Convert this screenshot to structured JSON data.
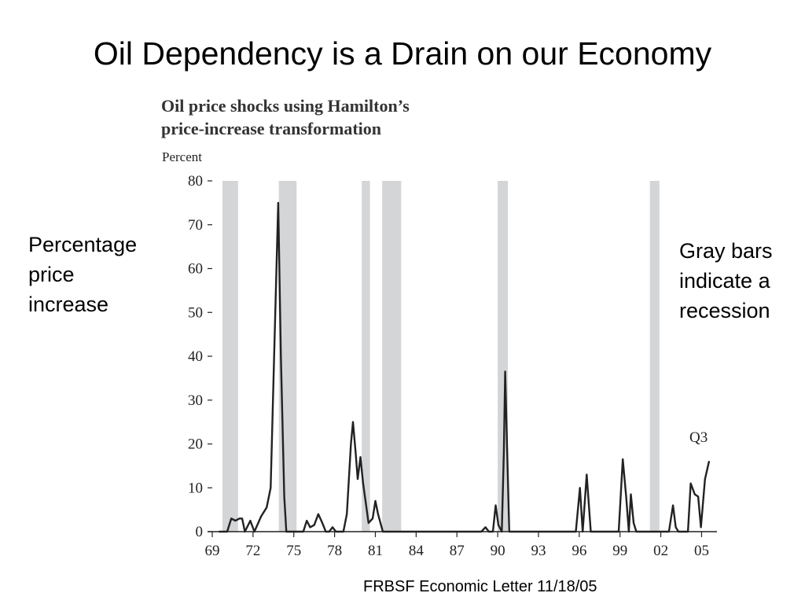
{
  "slide": {
    "title": "Oil Dependency is a Drain on our Economy",
    "left_note": [
      "Percentage",
      "price",
      "increase"
    ],
    "right_note": [
      "Gray bars",
      "indicate a",
      "recession"
    ],
    "source": "FRBSF Economic Letter 11/18/05"
  },
  "chart_data": {
    "type": "line",
    "title": [
      "Oil price shocks using Hamilton’s",
      "price-increase transformation"
    ],
    "ylabel": "Percent",
    "xlabel": "",
    "ylim": [
      0,
      80
    ],
    "yticks": [
      0,
      10,
      20,
      30,
      40,
      50,
      60,
      70,
      80
    ],
    "xlim": [
      1969,
      2005.9
    ],
    "xticks": [
      {
        "value": 1969,
        "label": "69"
      },
      {
        "value": 1972,
        "label": "72"
      },
      {
        "value": 1975,
        "label": "75"
      },
      {
        "value": 1978,
        "label": "78"
      },
      {
        "value": 1981,
        "label": "81"
      },
      {
        "value": 1984,
        "label": "84"
      },
      {
        "value": 1987,
        "label": "87"
      },
      {
        "value": 1990,
        "label": "90"
      },
      {
        "value": 1993,
        "label": "93"
      },
      {
        "value": 1996,
        "label": "96"
      },
      {
        "value": 1999,
        "label": "99"
      },
      {
        "value": 2002,
        "label": "02"
      },
      {
        "value": 2005,
        "label": "05"
      }
    ],
    "recessions": [
      [
        1969.75,
        1970.9
      ],
      [
        1973.9,
        1975.2
      ],
      [
        1980.0,
        1980.6
      ],
      [
        1981.5,
        1982.9
      ],
      [
        1990.0,
        1990.75
      ],
      [
        2001.2,
        2001.9
      ]
    ],
    "annotation": "Q3",
    "series": [
      {
        "color": "#222222",
        "points": [
          [
            1969.5,
            0
          ],
          [
            1970.1,
            0
          ],
          [
            1970.4,
            3
          ],
          [
            1970.7,
            2.5
          ],
          [
            1971.0,
            3
          ],
          [
            1971.2,
            3
          ],
          [
            1971.4,
            0
          ],
          [
            1971.8,
            2.5
          ],
          [
            1972.1,
            0
          ],
          [
            1972.6,
            3.5
          ],
          [
            1973.0,
            5.5
          ],
          [
            1973.3,
            10
          ],
          [
            1973.55,
            40
          ],
          [
            1973.85,
            75
          ],
          [
            1974.05,
            40
          ],
          [
            1974.3,
            8
          ],
          [
            1974.45,
            0
          ],
          [
            1975.7,
            0
          ],
          [
            1975.95,
            2.5
          ],
          [
            1976.2,
            1
          ],
          [
            1976.5,
            1.5
          ],
          [
            1976.8,
            4
          ],
          [
            1977.1,
            2
          ],
          [
            1977.35,
            0
          ],
          [
            1977.6,
            0
          ],
          [
            1977.85,
            1
          ],
          [
            1978.1,
            0
          ],
          [
            1978.65,
            0
          ],
          [
            1978.9,
            4
          ],
          [
            1979.2,
            20
          ],
          [
            1979.35,
            25
          ],
          [
            1979.55,
            18
          ],
          [
            1979.7,
            12
          ],
          [
            1979.9,
            17
          ],
          [
            1980.1,
            11
          ],
          [
            1980.5,
            2
          ],
          [
            1980.8,
            3
          ],
          [
            1981.0,
            7
          ],
          [
            1981.2,
            4
          ],
          [
            1981.55,
            0
          ],
          [
            1988.8,
            0
          ],
          [
            1989.1,
            1
          ],
          [
            1989.35,
            0
          ],
          [
            1989.65,
            0
          ],
          [
            1989.85,
            6
          ],
          [
            1990.05,
            1.5
          ],
          [
            1990.3,
            0
          ],
          [
            1990.45,
            18
          ],
          [
            1990.55,
            36.5
          ],
          [
            1990.7,
            18
          ],
          [
            1990.85,
            0
          ],
          [
            1995.75,
            0
          ],
          [
            1996.05,
            10
          ],
          [
            1996.25,
            0
          ],
          [
            1996.55,
            13
          ],
          [
            1996.85,
            0
          ],
          [
            1998.9,
            0
          ],
          [
            1999.2,
            16.5
          ],
          [
            1999.45,
            8
          ],
          [
            1999.65,
            0
          ],
          [
            1999.8,
            8.5
          ],
          [
            2000.0,
            2
          ],
          [
            2000.2,
            0
          ],
          [
            2002.6,
            0
          ],
          [
            2002.9,
            6
          ],
          [
            2003.1,
            1
          ],
          [
            2003.3,
            0
          ],
          [
            2004.0,
            0
          ],
          [
            2004.2,
            11
          ],
          [
            2004.5,
            8.5
          ],
          [
            2004.75,
            8
          ],
          [
            2004.95,
            1
          ],
          [
            2005.25,
            12
          ],
          [
            2005.55,
            16
          ]
        ]
      }
    ]
  }
}
